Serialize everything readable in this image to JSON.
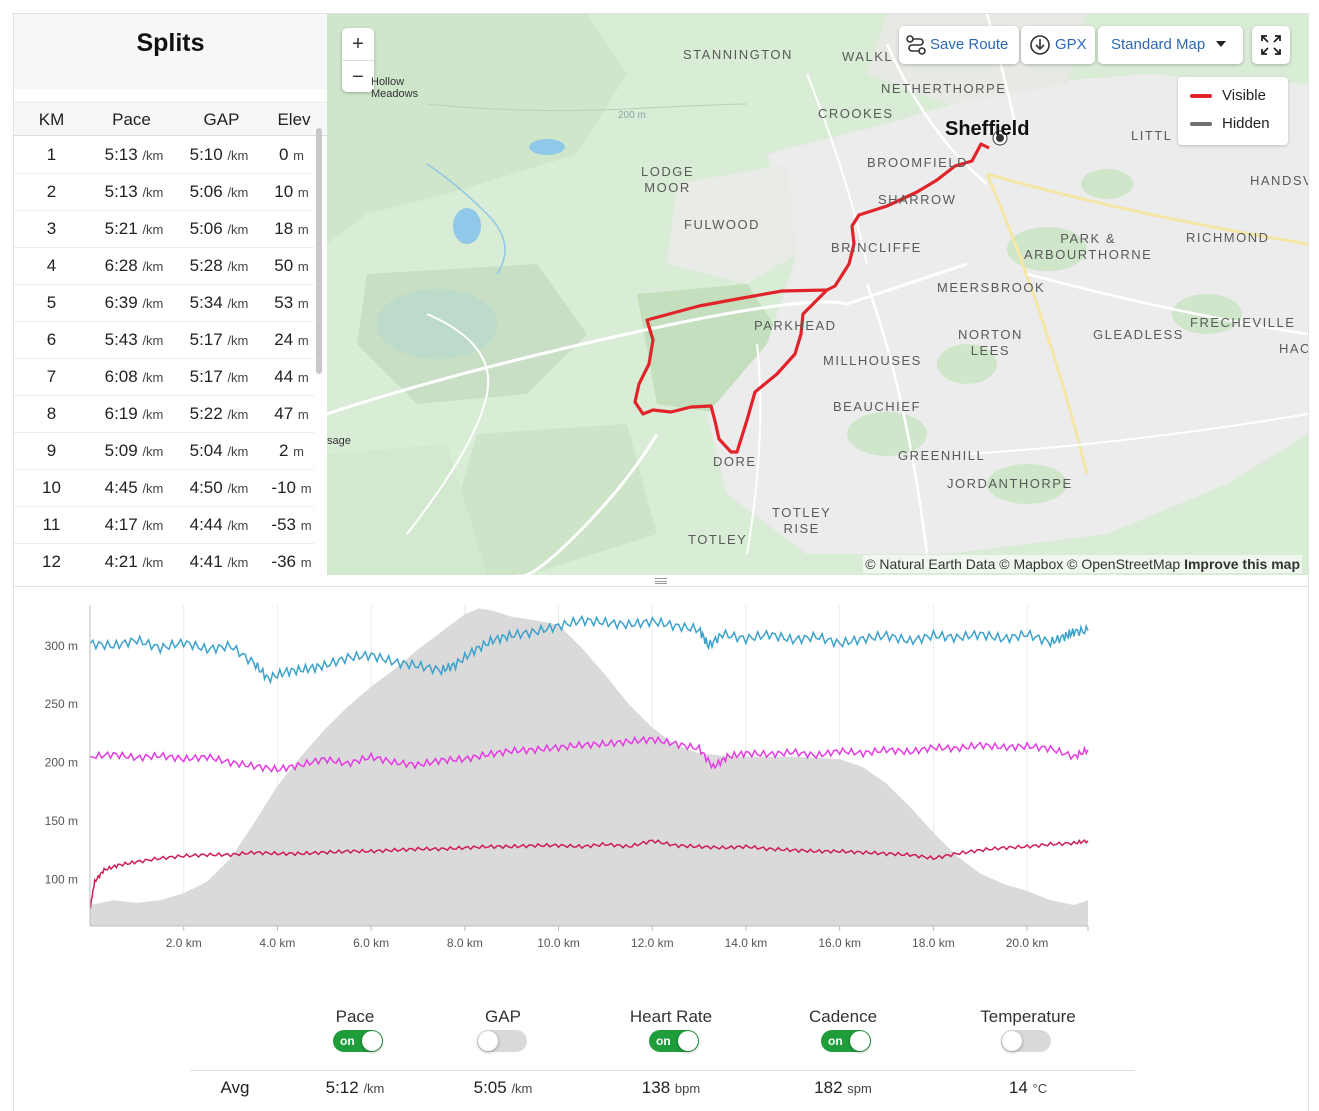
{
  "splits": {
    "title": "Splits",
    "columns": [
      "KM",
      "Pace",
      "GAP",
      "Elev"
    ],
    "rows": [
      {
        "km": "1",
        "pace": "5:13",
        "gap": "5:10",
        "elev": "0"
      },
      {
        "km": "2",
        "pace": "5:13",
        "gap": "5:06",
        "elev": "10"
      },
      {
        "km": "3",
        "pace": "5:21",
        "gap": "5:06",
        "elev": "18"
      },
      {
        "km": "4",
        "pace": "6:28",
        "gap": "5:28",
        "elev": "50"
      },
      {
        "km": "5",
        "pace": "6:39",
        "gap": "5:34",
        "elev": "53"
      },
      {
        "km": "6",
        "pace": "5:43",
        "gap": "5:17",
        "elev": "24"
      },
      {
        "km": "7",
        "pace": "6:08",
        "gap": "5:17",
        "elev": "44"
      },
      {
        "km": "8",
        "pace": "6:19",
        "gap": "5:22",
        "elev": "47"
      },
      {
        "km": "9",
        "pace": "5:09",
        "gap": "5:04",
        "elev": "2"
      },
      {
        "km": "10",
        "pace": "4:45",
        "gap": "4:50",
        "elev": "-10"
      },
      {
        "km": "11",
        "pace": "4:17",
        "gap": "4:44",
        "elev": "-53"
      },
      {
        "km": "12",
        "pace": "4:21",
        "gap": "4:41",
        "elev": "-36"
      }
    ],
    "pace_unit": "/km",
    "elev_unit": "m"
  },
  "map": {
    "zoom_in": "+",
    "zoom_out": "−",
    "save_route": "Save Route",
    "gpx": "GPX",
    "map_style": "Standard Map",
    "legend": [
      {
        "label": "Visible",
        "color": "#e0242a"
      },
      {
        "label": "Hidden",
        "color": "#6f6f6f"
      }
    ],
    "city": "Sheffield",
    "places": {
      "stannington": "STANNINGTON",
      "walkley": "WALKL",
      "netherthorpe": "NETHERTHORPE",
      "crookes": "CROOKES",
      "broomfield": "BROOMFIELD",
      "sharrow": "SHARROW",
      "lodge_moor_1": "LODGE",
      "lodge_moor_2": "MOOR",
      "fulwood": "FULWOOD",
      "brincliffe": "BRINCLIFFE",
      "park_arb_1": "PARK &",
      "park_arb_2": "ARBOURTHORNE",
      "richmond": "RICHMOND",
      "handsworth": "HANDSV",
      "little": "LITTL",
      "meersbrook": "MEERSBROOK",
      "parkhead": "PARKHEAD",
      "norton_1": "NORTON",
      "norton_2": "LEES",
      "gleadless": "GLEADLESS",
      "frecheville": "FRECHEVILLE",
      "hac": "HAC",
      "millhouses": "MILLHOUSES",
      "beauchief": "BEAUCHIEF",
      "greenhill": "GREENHILL",
      "jordanthorpe": "JORDANTHORPE",
      "dore": "DORE",
      "totley_rise_1": "TOTLEY",
      "totley_rise_2": "RISE",
      "totley": "TOTLEY",
      "hollow_1": "Hollow",
      "hollow_2": "Meadows",
      "sage": "sage",
      "contour": "200 m"
    },
    "attribution_prefix": "© Natural Earth Data © Mapbox © OpenStreetMap",
    "attribution_link": "Improve this map"
  },
  "chart_data": {
    "type": "line",
    "x_unit": "km",
    "xlim": [
      0,
      21.3
    ],
    "x_ticks": [
      {
        "value": 2,
        "label": "2.0 km"
      },
      {
        "value": 4,
        "label": "4.0 km"
      },
      {
        "value": 6,
        "label": "6.0 km"
      },
      {
        "value": 8,
        "label": "8.0 km"
      },
      {
        "value": 10,
        "label": "10.0 km"
      },
      {
        "value": 12,
        "label": "12.0 km"
      },
      {
        "value": 14,
        "label": "14.0 km"
      },
      {
        "value": 16,
        "label": "16.0 km"
      },
      {
        "value": 18,
        "label": "18.0 km"
      },
      {
        "value": 20,
        "label": "20.0 km"
      }
    ],
    "ylim": [
      60,
      335
    ],
    "y_ticks": [
      {
        "value": 100,
        "label": "100 m"
      },
      {
        "value": 150,
        "label": "150 m"
      },
      {
        "value": 200,
        "label": "200 m"
      },
      {
        "value": 250,
        "label": "250 m"
      },
      {
        "value": 300,
        "label": "300 m"
      }
    ],
    "grid_x": true,
    "elevation": {
      "color": "#dadada",
      "x": [
        0,
        0.5,
        1,
        1.5,
        2,
        2.5,
        3,
        3.5,
        4,
        4.5,
        5,
        5.5,
        6,
        6.5,
        7,
        7.5,
        8,
        8.3,
        8.6,
        9,
        9.5,
        10,
        10.5,
        11,
        11.5,
        12,
        12.5,
        13,
        13.5,
        14,
        14.5,
        15,
        15.5,
        16,
        16.5,
        17,
        17.5,
        18,
        18.5,
        19,
        19.5,
        20,
        20.5,
        21,
        21.3
      ],
      "values": [
        78,
        82,
        80,
        82,
        88,
        98,
        118,
        148,
        180,
        205,
        228,
        248,
        265,
        280,
        297,
        312,
        327,
        332,
        330,
        325,
        322,
        318,
        298,
        275,
        250,
        230,
        215,
        208,
        206,
        205,
        205,
        205,
        204,
        203,
        196,
        182,
        162,
        140,
        120,
        105,
        96,
        90,
        82,
        78,
        82
      ]
    },
    "series": [
      {
        "key": "pace",
        "color": "#3ba2cc",
        "x": [
          0,
          0.5,
          1,
          1.5,
          2,
          2.5,
          3,
          3.5,
          3.8,
          4.2,
          4.6,
          5,
          5.5,
          6,
          6.5,
          7,
          7.5,
          7.8,
          8.2,
          8.6,
          9,
          9.5,
          10,
          10.5,
          11,
          11.5,
          12,
          12.5,
          13,
          13.2,
          13.5,
          14,
          14.5,
          15,
          15.5,
          16,
          16.5,
          17,
          17.5,
          18,
          18.5,
          19,
          19.5,
          20,
          20.5,
          20.8,
          21,
          21.3
        ],
        "values": [
          302,
          300,
          305,
          298,
          303,
          297,
          300,
          285,
          272,
          278,
          280,
          283,
          290,
          292,
          286,
          283,
          279,
          284,
          296,
          305,
          309,
          312,
          317,
          322,
          320,
          318,
          321,
          317,
          314,
          300,
          310,
          306,
          310,
          305,
          308,
          302,
          306,
          309,
          304,
          309,
          307,
          310,
          306,
          310,
          303,
          308,
          312,
          313
        ]
      },
      {
        "key": "cadence",
        "color": "#e23de0",
        "x": [
          0,
          0.5,
          1,
          1.5,
          2,
          2.5,
          3,
          3.5,
          4,
          4.5,
          5,
          5.5,
          6,
          6.5,
          7,
          7.5,
          8,
          8.5,
          9,
          9.5,
          10,
          10.5,
          11,
          11.5,
          12,
          12.5,
          13,
          13.3,
          13.6,
          14,
          14.5,
          15,
          15.5,
          16,
          16.5,
          17,
          17.5,
          18,
          18.5,
          19,
          19.5,
          20,
          20.5,
          21,
          21.3
        ],
        "values": [
          205,
          207,
          204,
          206,
          203,
          205,
          200,
          197,
          194,
          198,
          203,
          199,
          205,
          200,
          198,
          202,
          203,
          207,
          210,
          211,
          213,
          215,
          216,
          218,
          220,
          216,
          212,
          196,
          205,
          208,
          207,
          209,
          206,
          210,
          208,
          211,
          209,
          213,
          212,
          215,
          213,
          214,
          212,
          205,
          211
        ]
      },
      {
        "key": "heart_rate",
        "color": "#cc1f52",
        "x": [
          0,
          0.1,
          0.3,
          0.6,
          1,
          1.5,
          2,
          2.5,
          3,
          3.5,
          4,
          4.5,
          5,
          5.5,
          6,
          6.5,
          7,
          7.5,
          8,
          8.5,
          9,
          9.5,
          10,
          10.5,
          11,
          11.5,
          12,
          12.5,
          13,
          13.5,
          14,
          14.5,
          15,
          15.5,
          16,
          16.5,
          17,
          17.5,
          18,
          18.5,
          19,
          19.5,
          20,
          20.5,
          21,
          21.3
        ],
        "values": [
          75,
          98,
          108,
          112,
          115,
          118,
          120,
          121,
          121,
          123,
          122,
          122,
          123,
          124,
          124,
          125,
          126,
          126,
          127,
          128,
          128,
          129,
          129,
          128,
          130,
          128,
          133,
          129,
          128,
          127,
          128,
          126,
          125,
          124,
          124,
          123,
          122,
          121,
          118,
          122,
          125,
          127,
          128,
          130,
          131,
          133
        ]
      }
    ]
  },
  "toggles": [
    {
      "label": "Pace",
      "state": "on",
      "on_text": "on"
    },
    {
      "label": "GAP",
      "state": "off",
      "on_text": ""
    },
    {
      "label": "Heart Rate",
      "state": "on",
      "on_text": "on"
    },
    {
      "label": "Cadence",
      "state": "on",
      "on_text": "on"
    },
    {
      "label": "Temperature",
      "state": "off",
      "on_text": ""
    }
  ],
  "averages": {
    "label": "Avg",
    "pace": {
      "value": "5:12",
      "unit": "/km"
    },
    "gap": {
      "value": "5:05",
      "unit": "/km"
    },
    "heart_rate": {
      "value": "138",
      "unit": "bpm"
    },
    "cadence": {
      "value": "182",
      "unit": "spm"
    },
    "temperature": {
      "value": "14",
      "unit": "°C"
    }
  }
}
